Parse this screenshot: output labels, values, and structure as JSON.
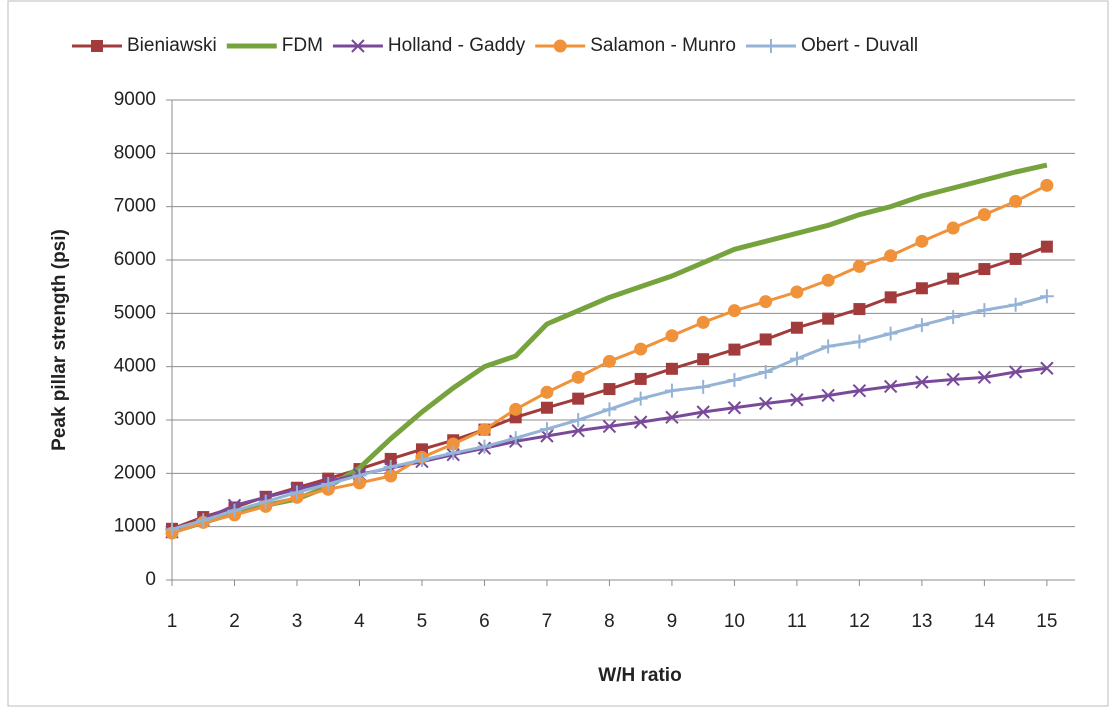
{
  "chart_data": {
    "type": "line",
    "x": [
      1,
      1.5,
      2,
      2.5,
      3,
      3.5,
      4,
      4.5,
      5,
      5.5,
      6,
      6.5,
      7,
      7.5,
      8,
      8.5,
      9,
      9.5,
      10,
      10.5,
      11,
      11.5,
      12,
      12.5,
      13,
      13.5,
      14,
      14.5,
      15
    ],
    "series": [
      {
        "name": "Bieniawski",
        "color": "#a23b3b",
        "marker": "square",
        "values": [
          960,
          1180,
          1360,
          1560,
          1730,
          1900,
          2080,
          2270,
          2450,
          2620,
          2820,
          3050,
          3230,
          3400,
          3580,
          3770,
          3960,
          4140,
          4320,
          4510,
          4730,
          4900,
          5080,
          5300,
          5470,
          5650,
          5830,
          6020,
          6250
        ]
      },
      {
        "name": "FDM",
        "color": "#77a33f",
        "marker": "none",
        "values": [
          900,
          1080,
          1250,
          1400,
          1520,
          1750,
          2100,
          2650,
          3150,
          3600,
          4000,
          4200,
          4800,
          5050,
          5300,
          5500,
          5700,
          5950,
          6200,
          6350,
          6500,
          6650,
          6850,
          7000,
          7200,
          7350,
          7500,
          7650,
          7780
        ]
      },
      {
        "name": "Holland - Gaddy",
        "color": "#7a4a9a",
        "marker": "x",
        "values": [
          900,
          1130,
          1400,
          1550,
          1700,
          1850,
          1980,
          2100,
          2220,
          2350,
          2470,
          2600,
          2700,
          2800,
          2880,
          2960,
          3050,
          3150,
          3230,
          3310,
          3380,
          3460,
          3550,
          3630,
          3710,
          3760,
          3800,
          3900,
          3970
        ]
      },
      {
        "name": "Salamon - Munro",
        "color": "#f0923a",
        "marker": "circle",
        "values": [
          880,
          1080,
          1220,
          1380,
          1550,
          1700,
          1820,
          1950,
          2300,
          2550,
          2820,
          3200,
          3520,
          3800,
          4100,
          4330,
          4580,
          4830,
          5050,
          5220,
          5400,
          5620,
          5880,
          6080,
          6350,
          6600,
          6850,
          7100,
          7400
        ]
      },
      {
        "name": "Obert - Duvall",
        "color": "#95b3d7",
        "marker": "plus",
        "values": [
          950,
          1120,
          1300,
          1470,
          1640,
          1800,
          1960,
          2120,
          2250,
          2380,
          2500,
          2660,
          2830,
          3000,
          3200,
          3400,
          3550,
          3620,
          3750,
          3900,
          4150,
          4380,
          4470,
          4620,
          4780,
          4930,
          5060,
          5160,
          5320
        ]
      }
    ],
    "xlabel": "W/H ratio",
    "ylabel": "Peak pillar strength (psi)",
    "xlim": [
      1,
      15.45
    ],
    "xticks": [
      1,
      2,
      3,
      4,
      5,
      6,
      7,
      8,
      9,
      10,
      11,
      12,
      13,
      14,
      15
    ],
    "ylim": [
      0,
      9000
    ],
    "yticks": [
      0,
      1000,
      2000,
      3000,
      4000,
      5000,
      6000,
      7000,
      8000,
      9000
    ],
    "grid": true,
    "legend": "top"
  }
}
